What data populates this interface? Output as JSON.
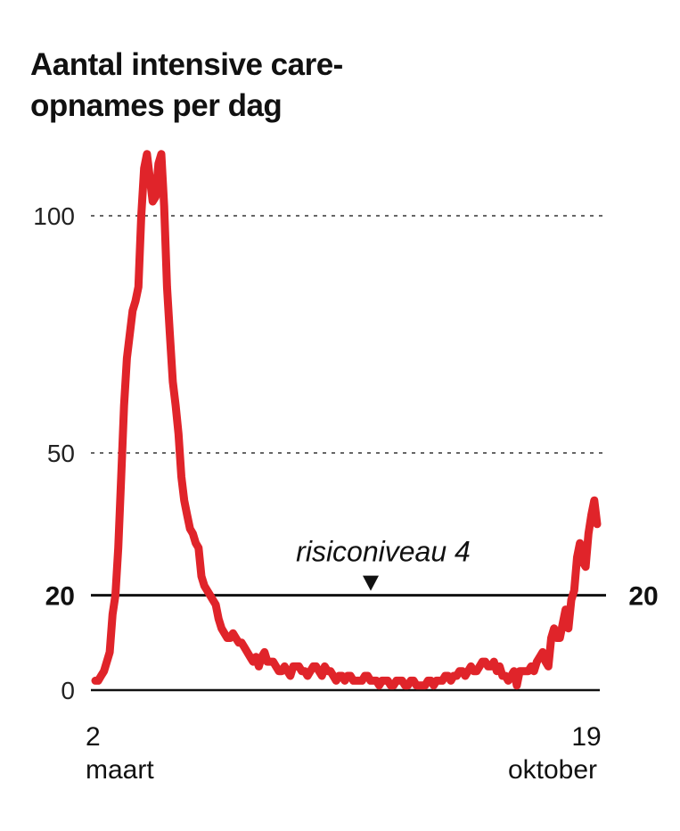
{
  "title_line1": "Aantal intensive care-",
  "title_line2": "opnames per dag",
  "chart_data": {
    "type": "line",
    "title": "Aantal intensive care-opnames per dag",
    "xlabel": "",
    "ylabel": "",
    "x_start_label": [
      "2",
      "maart"
    ],
    "x_end_label": [
      "19",
      "oktober"
    ],
    "x_range": [
      "2020-03-02",
      "2020-10-19"
    ],
    "yticks": [
      0,
      50,
      100
    ],
    "ylim": [
      0,
      115
    ],
    "reference_line": {
      "value": 20,
      "label_left": "20",
      "label_right": "20",
      "annotation": "risiconiveau 4"
    },
    "color": "#e0242a",
    "series": [
      {
        "values": [
          2,
          2,
          3,
          4,
          6,
          8,
          16,
          20,
          30,
          45,
          60,
          70,
          75,
          80,
          82,
          85,
          100,
          110,
          113,
          108,
          103,
          104,
          111,
          113,
          102,
          85,
          75,
          65,
          60,
          54,
          45,
          40,
          37,
          34,
          33,
          31,
          30,
          24,
          22,
          21,
          20,
          19,
          18,
          15,
          13,
          12,
          11,
          11,
          12,
          11,
          10,
          10,
          9,
          8,
          7,
          6,
          7,
          5,
          7,
          8,
          6,
          6,
          6,
          5,
          4,
          4,
          5,
          4,
          3,
          5,
          5,
          5,
          4,
          4,
          3,
          4,
          5,
          5,
          4,
          3,
          5,
          4,
          4,
          3,
          2,
          3,
          3,
          2,
          3,
          3,
          2,
          2,
          2,
          2,
          3,
          3,
          2,
          2,
          2,
          1,
          2,
          2,
          2,
          1,
          1,
          2,
          2,
          2,
          1,
          1,
          2,
          2,
          1,
          1,
          1,
          1,
          2,
          2,
          1,
          2,
          2,
          2,
          3,
          3,
          2,
          3,
          3,
          4,
          4,
          3,
          4,
          5,
          4,
          4,
          5,
          6,
          6,
          5,
          5,
          6,
          4,
          5,
          3,
          3,
          2,
          3,
          4,
          1,
          4,
          4,
          4,
          4,
          5,
          4,
          6,
          7,
          8,
          6,
          5,
          11,
          13,
          11,
          11,
          14,
          17,
          13,
          19,
          21,
          28,
          31,
          27,
          26,
          33,
          37,
          40,
          35
        ]
      }
    ]
  }
}
